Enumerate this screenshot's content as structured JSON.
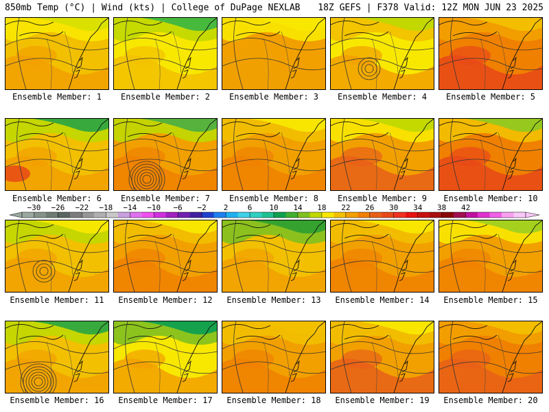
{
  "header": {
    "left": "850mb Temp (°C) | Wind (kts) | College of DuPage NEXLAB",
    "right": "18Z GEFS | F378 Valid: 12Z MON JUN 23 2025"
  },
  "members": [
    {
      "label": "Ensemble Member: 1",
      "base": "#f2c000",
      "warm": "#f2a000",
      "cool": "#f8e800",
      "cool2": "#d8e000",
      "feature": "none"
    },
    {
      "label": "Ensemble Member: 2",
      "base": "#f8e800",
      "warm": "#f2c000",
      "cool": "#c0d800",
      "cool2": "#40b840",
      "feature": "none"
    },
    {
      "label": "Ensemble Member: 3",
      "base": "#f2a000",
      "warm": "#f0a000",
      "cool": "#f8e800",
      "cool2": "#f8e800",
      "feature": "none"
    },
    {
      "label": "Ensemble Member: 4",
      "base": "#f8e800",
      "warm": "#f2a000",
      "cool": "#f2c000",
      "cool2": "#c0d800",
      "feature": "lowsmall"
    },
    {
      "label": "Ensemble Member: 5",
      "base": "#f08000",
      "warm": "#e84818",
      "cool": "#f2a000",
      "cool2": "#f2c000",
      "feature": "none"
    },
    {
      "label": "Ensemble Member: 6",
      "base": "#f2c000",
      "warm": "#f2a000",
      "cool": "#c0d800",
      "cool2": "#30a840",
      "feature": "warmleft"
    },
    {
      "label": "Ensemble Member: 7",
      "base": "#f2a000",
      "warm": "#f08000",
      "cool": "#c0d800",
      "cool2": "#50b040",
      "feature": "low"
    },
    {
      "label": "Ensemble Member: 8",
      "base": "#f2a000",
      "warm": "#f08000",
      "cool": "#f2c000",
      "cool2": "#f8e800",
      "feature": "none"
    },
    {
      "label": "Ensemble Member: 9",
      "base": "#f2a000",
      "warm": "#e86018",
      "cool": "#f8e800",
      "cool2": "#c0d800",
      "feature": "none"
    },
    {
      "label": "Ensemble Member: 10",
      "base": "#f08000",
      "warm": "#e84818",
      "cool": "#f2c000",
      "cool2": "#90c820",
      "feature": "none"
    },
    {
      "label": "Ensemble Member: 11",
      "base": "#f2c000",
      "warm": "#f2a000",
      "cool": "#c0d800",
      "cool2": "#f8e800",
      "feature": "lowsmall"
    },
    {
      "label": "Ensemble Member: 12",
      "base": "#f2a000",
      "warm": "#f08000",
      "cool": "#f2c000",
      "cool2": "#f8e800",
      "feature": "none"
    },
    {
      "label": "Ensemble Member: 13",
      "base": "#f2c000",
      "warm": "#f2a000",
      "cool": "#80c020",
      "cool2": "#30a030",
      "feature": "none"
    },
    {
      "label": "Ensemble Member: 14",
      "base": "#f2a000",
      "warm": "#f08000",
      "cool": "#f2c000",
      "cool2": "#f8e800",
      "feature": "none"
    },
    {
      "label": "Ensemble Member: 15",
      "base": "#f2a000",
      "warm": "#f08000",
      "cool": "#f8e800",
      "cool2": "#a0d020",
      "feature": "none"
    },
    {
      "label": "Ensemble Member: 16",
      "base": "#f2c000",
      "warm": "#f2a000",
      "cool": "#c0d800",
      "cool2": "#30a840",
      "feature": "low"
    },
    {
      "label": "Ensemble Member: 17",
      "base": "#f8e800",
      "warm": "#f2a000",
      "cool": "#80c020",
      "cool2": "#10a050",
      "feature": "none"
    },
    {
      "label": "Ensemble Member: 18",
      "base": "#f2a000",
      "warm": "#f08000",
      "cool": "#f2c000",
      "cool2": "#f2c000",
      "feature": "none"
    },
    {
      "label": "Ensemble Member: 19",
      "base": "#f2a000",
      "warm": "#e86018",
      "cool": "#f2c000",
      "cool2": "#f8e800",
      "feature": "none"
    },
    {
      "label": "Ensemble Member: 20",
      "base": "#f08000",
      "warm": "#e86018",
      "cool": "#f2a000",
      "cool2": "#f2c000",
      "feature": "none"
    }
  ],
  "colorbar": {
    "labels": [
      "−30",
      "−26",
      "−22",
      "−18",
      "−14",
      "−10",
      "−6",
      "−2",
      "2",
      "6",
      "10",
      "14",
      "18",
      "22",
      "26",
      "30",
      "34",
      "38",
      "42"
    ],
    "colors": [
      "#9aa8a0",
      "#84928a",
      "#6e7c74",
      "#5a6660",
      "#7c7c7c",
      "#969696",
      "#b0b0b0",
      "#c8c8c8",
      "#c8a0e0",
      "#e070f0",
      "#f050f0",
      "#d030e0",
      "#a020c0",
      "#7020b0",
      "#4020a0",
      "#2040d0",
      "#2080f0",
      "#20b0f0",
      "#40d0e8",
      "#30d0c0",
      "#20c090",
      "#10a050",
      "#40b030",
      "#80c020",
      "#c0d800",
      "#f8e800",
      "#f2c000",
      "#f2a000",
      "#f08000",
      "#e86018",
      "#e84818",
      "#f03020",
      "#e81010",
      "#c81010",
      "#a81010",
      "#880808",
      "#a01050",
      "#c010a0",
      "#e030d0",
      "#f060e8",
      "#f8a0f0",
      "#f8c8f8"
    ]
  }
}
